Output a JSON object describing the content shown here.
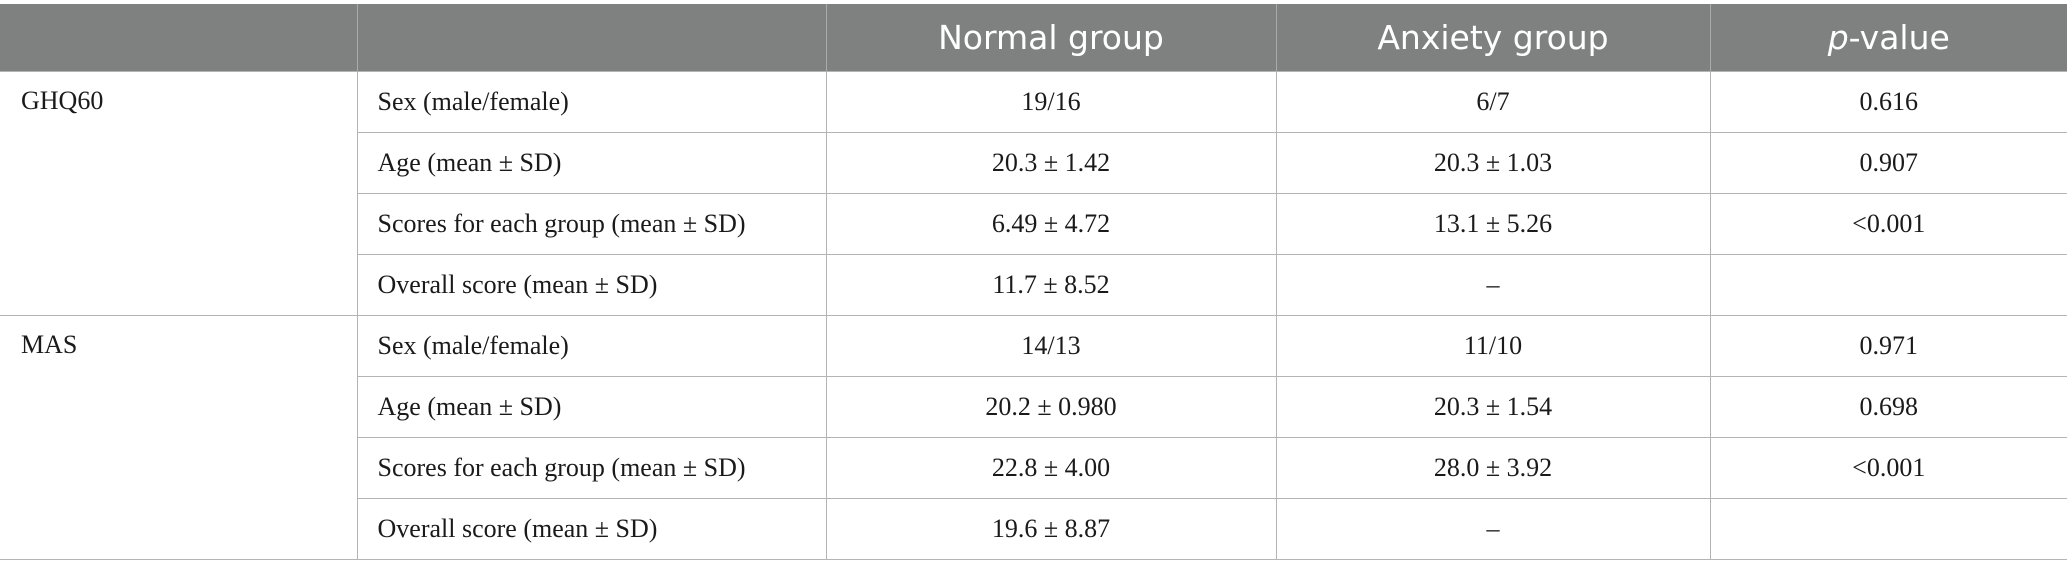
{
  "header": {
    "blank": "",
    "normal": "Normal group",
    "anxiety": "Anxiety group",
    "p_italic": "p",
    "p_rest": "-value"
  },
  "groups": [
    {
      "name": "GHQ60",
      "rows": [
        {
          "param": "Sex (male/female)",
          "normal": "19/16",
          "anxiety": "6/7",
          "p": "0.616"
        },
        {
          "param": "Age (mean ± SD)",
          "normal": "20.3 ± 1.42",
          "anxiety": "20.3 ± 1.03",
          "p": "0.907"
        },
        {
          "param": "Scores for each group (mean ± SD)",
          "normal": "6.49 ± 4.72",
          "anxiety": "13.1 ± 5.26",
          "p": "<0.001"
        },
        {
          "param": "Overall score (mean ± SD)",
          "normal": "11.7 ± 8.52",
          "anxiety": "–",
          "p": ""
        }
      ]
    },
    {
      "name": "MAS",
      "rows": [
        {
          "param": "Sex (male/female)",
          "normal": "14/13",
          "anxiety": "11/10",
          "p": "0.971"
        },
        {
          "param": "Age (mean ± SD)",
          "normal": "20.2 ± 0.980",
          "anxiety": "20.3 ± 1.54",
          "p": "0.698"
        },
        {
          "param": "Scores for each group (mean ± SD)",
          "normal": "22.8 ± 4.00",
          "anxiety": "28.0 ± 3.92",
          "p": "<0.001"
        },
        {
          "param": "Overall score (mean ± SD)",
          "normal": "19.6 ± 8.87",
          "anxiety": "–",
          "p": ""
        }
      ]
    }
  ]
}
